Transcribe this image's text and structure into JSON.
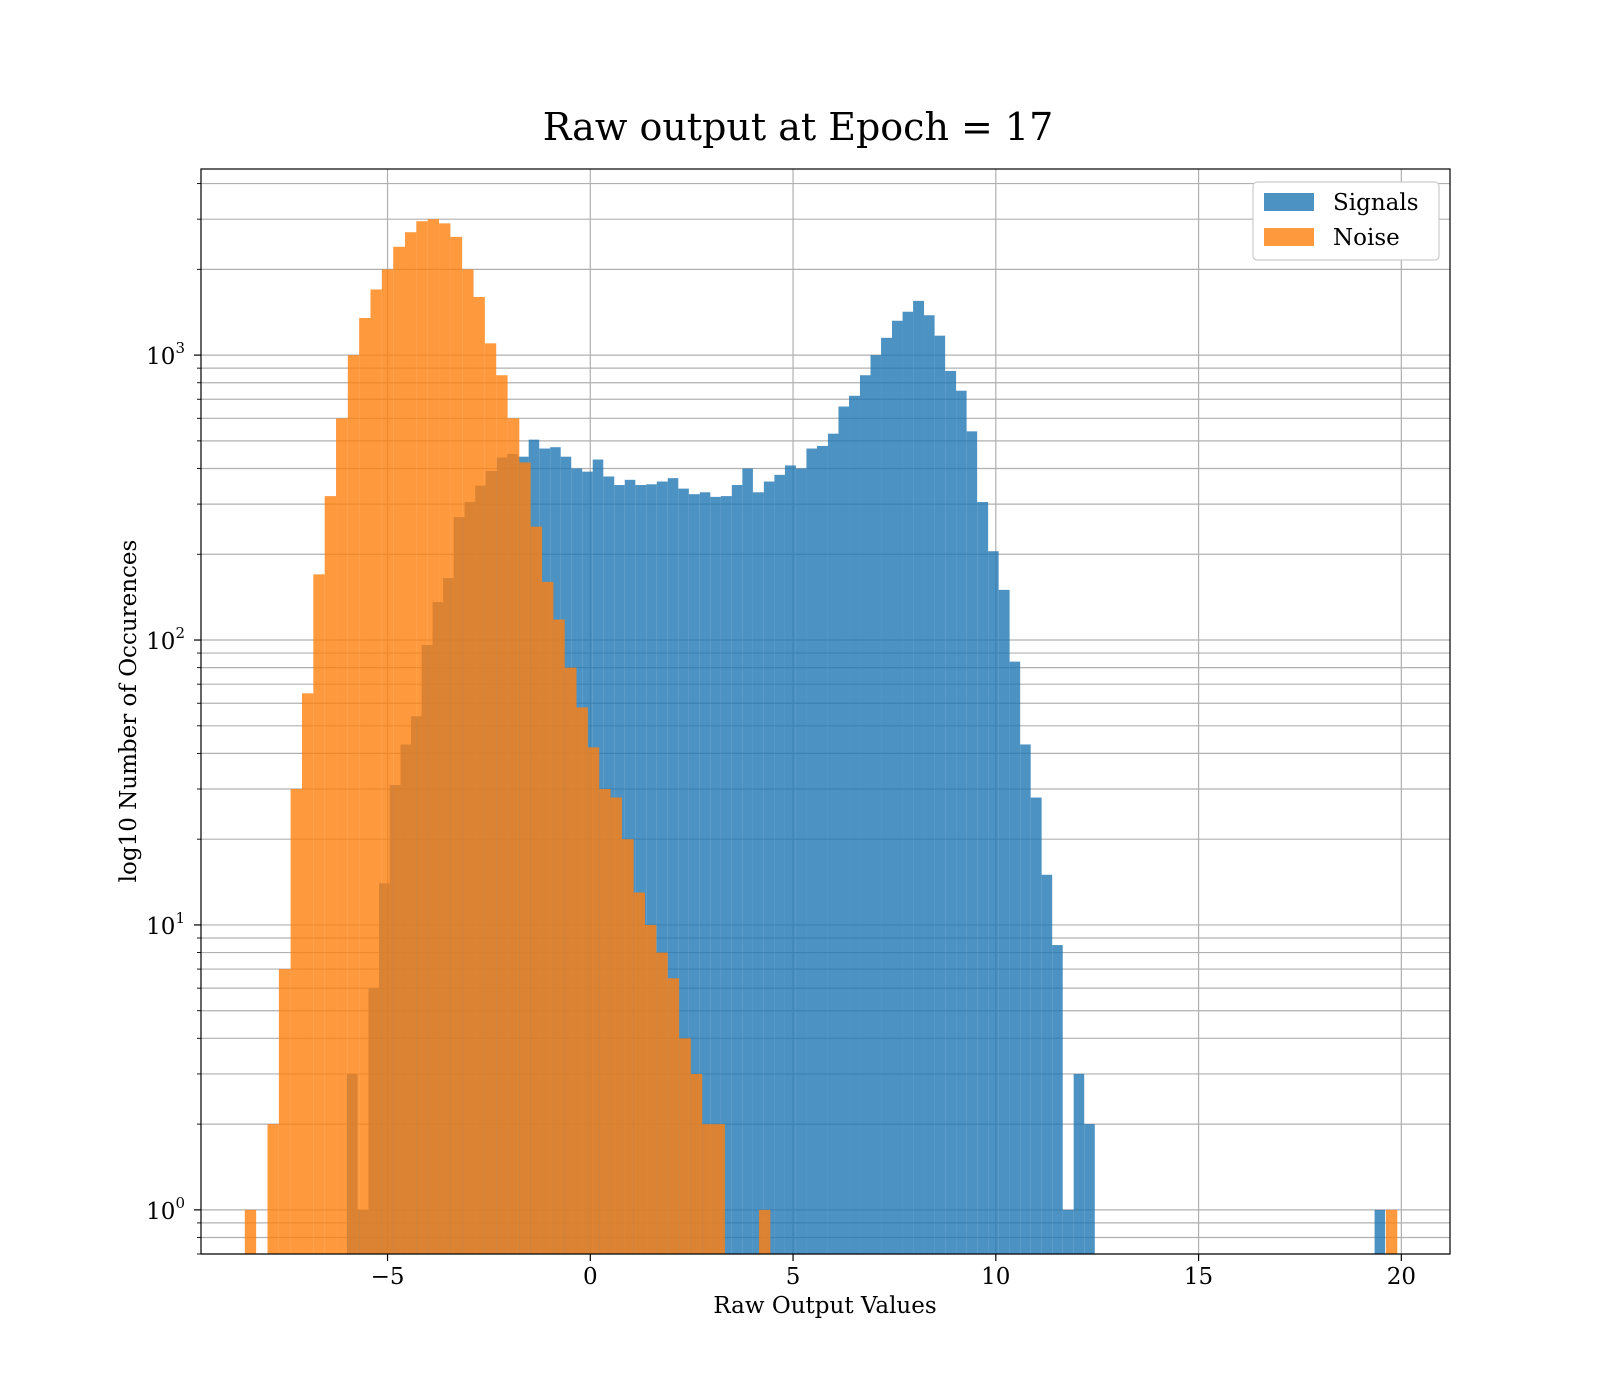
{
  "chart_data": {
    "type": "bar",
    "title": "Raw output at Epoch = 17",
    "xlabel": "Raw Output Values",
    "ylabel": "log10 Number of Occurences",
    "xlim": [
      -9.6,
      21.2
    ],
    "ylim": [
      0.7,
      4500
    ],
    "yscale": "log",
    "grid": true,
    "legend_position": "top-right",
    "x_ticks": [
      -5,
      0,
      5,
      10,
      15,
      20
    ],
    "x_tick_labels": [
      "−5",
      "0",
      "5",
      "10",
      "15",
      "20"
    ],
    "y_ticks": [
      1,
      10,
      100,
      1000
    ],
    "y_tick_labels": [
      {
        "base": "10",
        "exp": "0"
      },
      {
        "base": "10",
        "exp": "1"
      },
      {
        "base": "10",
        "exp": "2"
      },
      {
        "base": "10",
        "exp": "3"
      }
    ],
    "series": [
      {
        "name": "Signals",
        "color": "#1f77b4",
        "opacity": 0.8,
        "bins": [
          [
            -6.0,
            -5.74,
            3
          ],
          [
            -5.74,
            -5.47,
            1
          ],
          [
            -5.47,
            -5.21,
            6
          ],
          [
            -5.21,
            -4.95,
            14
          ],
          [
            -4.95,
            -4.68,
            31
          ],
          [
            -4.68,
            -4.42,
            43
          ],
          [
            -4.42,
            -4.16,
            54
          ],
          [
            -4.16,
            -3.89,
            96
          ],
          [
            -3.89,
            -3.63,
            136
          ],
          [
            -3.63,
            -3.37,
            165
          ],
          [
            -3.37,
            -3.1,
            270
          ],
          [
            -3.1,
            -2.84,
            305
          ],
          [
            -2.84,
            -2.58,
            348
          ],
          [
            -2.58,
            -2.31,
            392
          ],
          [
            -2.31,
            -2.05,
            437
          ],
          [
            -2.05,
            -1.79,
            450
          ],
          [
            -1.79,
            -1.52,
            440
          ],
          [
            -1.52,
            -1.26,
            505
          ],
          [
            -1.26,
            -0.99,
            470
          ],
          [
            -0.99,
            -0.73,
            475
          ],
          [
            -0.73,
            -0.47,
            440
          ],
          [
            -0.47,
            -0.2,
            400
          ],
          [
            -0.2,
            0.06,
            390
          ],
          [
            0.06,
            0.32,
            430
          ],
          [
            0.32,
            0.59,
            375
          ],
          [
            0.59,
            0.85,
            350
          ],
          [
            0.85,
            1.11,
            365
          ],
          [
            1.11,
            1.38,
            350
          ],
          [
            1.38,
            1.64,
            352
          ],
          [
            1.64,
            1.91,
            360
          ],
          [
            1.91,
            2.17,
            370
          ],
          [
            2.17,
            2.43,
            340
          ],
          [
            2.43,
            2.7,
            325
          ],
          [
            2.7,
            2.96,
            330
          ],
          [
            2.96,
            3.22,
            318
          ],
          [
            3.22,
            3.49,
            320
          ],
          [
            3.49,
            3.75,
            350
          ],
          [
            3.75,
            4.01,
            400
          ],
          [
            4.01,
            4.28,
            330
          ],
          [
            4.28,
            4.54,
            360
          ],
          [
            4.54,
            4.8,
            380
          ],
          [
            4.8,
            5.07,
            410
          ],
          [
            5.07,
            5.33,
            400
          ],
          [
            5.33,
            5.59,
            470
          ],
          [
            5.59,
            5.86,
            480
          ],
          [
            5.86,
            6.12,
            530
          ],
          [
            6.12,
            6.38,
            660
          ],
          [
            6.38,
            6.65,
            720
          ],
          [
            6.65,
            6.91,
            850
          ],
          [
            6.91,
            7.17,
            1000
          ],
          [
            7.17,
            7.44,
            1150
          ],
          [
            7.44,
            7.7,
            1320
          ],
          [
            7.7,
            7.96,
            1420
          ],
          [
            7.96,
            8.23,
            1550
          ],
          [
            8.23,
            8.49,
            1380
          ],
          [
            8.49,
            8.75,
            1170
          ],
          [
            8.75,
            9.02,
            880
          ],
          [
            9.02,
            9.28,
            750
          ],
          [
            9.28,
            9.54,
            540
          ],
          [
            9.54,
            9.81,
            305
          ],
          [
            9.81,
            10.07,
            205
          ],
          [
            10.07,
            10.34,
            150
          ],
          [
            10.34,
            10.6,
            84
          ],
          [
            10.6,
            10.86,
            43
          ],
          [
            10.86,
            11.13,
            28
          ],
          [
            11.13,
            11.39,
            15
          ],
          [
            11.39,
            11.65,
            8.5
          ],
          [
            11.65,
            11.92,
            1
          ],
          [
            11.92,
            12.18,
            3
          ],
          [
            12.18,
            12.44,
            2
          ],
          [
            19.34,
            19.6,
            1
          ]
        ]
      },
      {
        "name": "Noise",
        "color": "#ff7f0e",
        "opacity": 0.8,
        "bins": [
          [
            -8.52,
            -8.24,
            1
          ],
          [
            -7.96,
            -7.68,
            2
          ],
          [
            -7.68,
            -7.39,
            7
          ],
          [
            -7.39,
            -7.11,
            30
          ],
          [
            -7.11,
            -6.83,
            65
          ],
          [
            -6.83,
            -6.55,
            170
          ],
          [
            -6.55,
            -6.27,
            320
          ],
          [
            -6.27,
            -5.98,
            600
          ],
          [
            -5.98,
            -5.7,
            1000
          ],
          [
            -5.7,
            -5.42,
            1350
          ],
          [
            -5.42,
            -5.14,
            1700
          ],
          [
            -5.14,
            -4.86,
            2000
          ],
          [
            -4.86,
            -4.57,
            2400
          ],
          [
            -4.57,
            -4.29,
            2700
          ],
          [
            -4.29,
            -4.01,
            2950
          ],
          [
            -4.01,
            -3.73,
            3000
          ],
          [
            -3.73,
            -3.45,
            2900
          ],
          [
            -3.45,
            -3.16,
            2600
          ],
          [
            -3.16,
            -2.88,
            2000
          ],
          [
            -2.88,
            -2.6,
            1600
          ],
          [
            -2.6,
            -2.32,
            1100
          ],
          [
            -2.32,
            -2.04,
            850
          ],
          [
            -2.04,
            -1.75,
            600
          ],
          [
            -1.75,
            -1.47,
            420
          ],
          [
            -1.47,
            -1.19,
            250
          ],
          [
            -1.19,
            -0.91,
            160
          ],
          [
            -0.91,
            -0.63,
            118
          ],
          [
            -0.63,
            -0.34,
            80
          ],
          [
            -0.34,
            -0.06,
            58
          ],
          [
            -0.06,
            0.22,
            42
          ],
          [
            0.22,
            0.5,
            30
          ],
          [
            0.5,
            0.78,
            28
          ],
          [
            0.78,
            1.07,
            20
          ],
          [
            1.07,
            1.35,
            13
          ],
          [
            1.35,
            1.63,
            10
          ],
          [
            1.63,
            1.91,
            8
          ],
          [
            1.91,
            2.19,
            6.5
          ],
          [
            2.19,
            2.48,
            4
          ],
          [
            2.48,
            2.76,
            3
          ],
          [
            2.76,
            3.04,
            2
          ],
          [
            3.04,
            3.32,
            2
          ],
          [
            4.16,
            4.44,
            1
          ],
          [
            19.62,
            19.9,
            1
          ]
        ]
      }
    ]
  }
}
